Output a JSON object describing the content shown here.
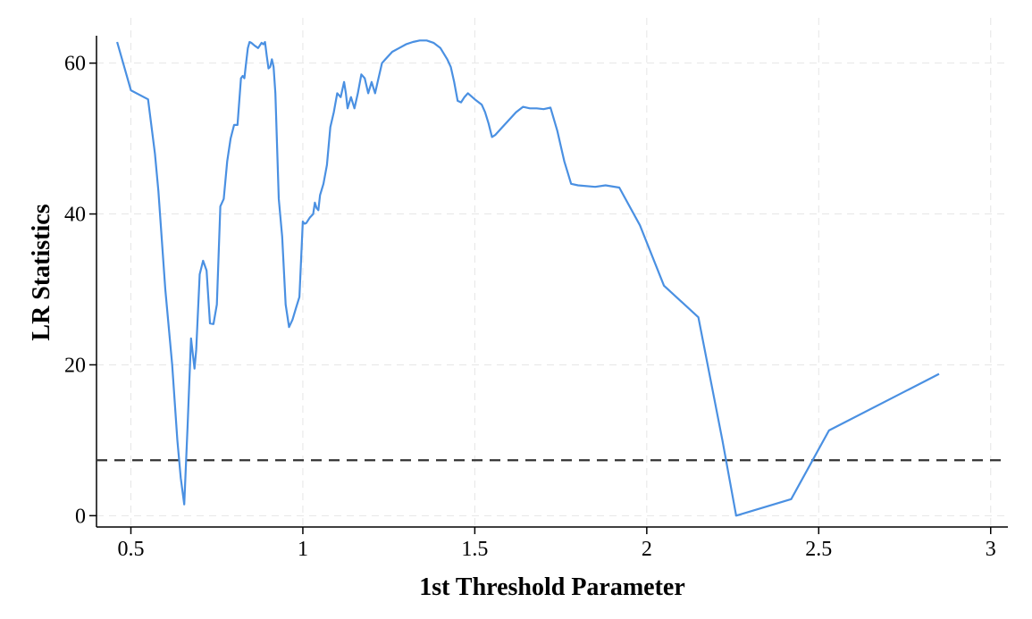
{
  "chart_data": {
    "type": "line",
    "xlabel": "1st Threshold Parameter",
    "ylabel": "LR Statistics",
    "xlim": [
      0.4,
      3.05
    ],
    "ylim": [
      -1.5,
      66
    ],
    "xticks": [
      0.5,
      1,
      1.5,
      2,
      2.5,
      3
    ],
    "xtick_labels": [
      "0.5",
      "1",
      "1.5",
      "2",
      "2.5",
      "3"
    ],
    "yticks": [
      0,
      20,
      40,
      60
    ],
    "ytick_labels": [
      "0",
      "20",
      "40",
      "60"
    ],
    "grid": true,
    "legend": "none",
    "critical_value": 7.35,
    "colors": {
      "series": "#4a90e2",
      "critical_line": "#333333",
      "grid": "#e6e6e6",
      "axis": "#000000"
    },
    "series": [
      {
        "x": [
          0.46,
          0.5,
          0.55,
          0.57,
          0.58,
          0.6,
          0.62,
          0.635,
          0.645,
          0.655,
          0.665,
          0.675,
          0.685,
          0.69,
          0.7,
          0.71,
          0.72,
          0.73,
          0.74,
          0.75,
          0.76,
          0.77,
          0.78,
          0.79,
          0.8,
          0.81,
          0.82,
          0.825,
          0.83,
          0.835,
          0.84,
          0.845,
          0.85,
          0.86,
          0.87,
          0.88,
          0.885,
          0.89,
          0.895,
          0.9,
          0.905,
          0.91,
          0.915,
          0.92,
          0.93,
          0.94,
          0.95,
          0.96,
          0.97,
          0.98,
          0.99,
          1.0,
          1.005,
          1.01,
          1.02,
          1.03,
          1.035,
          1.04,
          1.045,
          1.05,
          1.06,
          1.07,
          1.08,
          1.09,
          1.1,
          1.11,
          1.12,
          1.125,
          1.13,
          1.14,
          1.15,
          1.16,
          1.17,
          1.18,
          1.19,
          1.2,
          1.21,
          1.22,
          1.23,
          1.24,
          1.26,
          1.28,
          1.3,
          1.32,
          1.34,
          1.36,
          1.38,
          1.4,
          1.42,
          1.43,
          1.44,
          1.45,
          1.46,
          1.47,
          1.48,
          1.5,
          1.52,
          1.53,
          1.54,
          1.55,
          1.56,
          1.58,
          1.6,
          1.62,
          1.64,
          1.66,
          1.68,
          1.7,
          1.72,
          1.74,
          1.76,
          1.78,
          1.8,
          1.85,
          1.88,
          1.92,
          1.98,
          2.05,
          2.15,
          2.22,
          2.26,
          2.42,
          2.53,
          2.85
        ],
        "y": [
          62.8,
          56.4,
          55.2,
          48.0,
          43.0,
          30.0,
          20.0,
          10.0,
          5.0,
          1.5,
          12.0,
          23.5,
          19.5,
          22.0,
          32.0,
          33.8,
          32.5,
          25.5,
          25.4,
          28.0,
          41.0,
          42.0,
          47.0,
          50.0,
          51.8,
          51.8,
          58.0,
          58.3,
          58.0,
          60.0,
          62.0,
          62.8,
          62.7,
          62.3,
          62.0,
          62.7,
          62.5,
          62.8,
          61.0,
          59.3,
          59.5,
          60.5,
          59.5,
          56.0,
          42.0,
          37.0,
          28.0,
          25.0,
          26.0,
          27.5,
          29.0,
          39.0,
          38.7,
          38.8,
          39.5,
          40.0,
          41.5,
          40.8,
          40.5,
          42.5,
          44.0,
          46.5,
          51.5,
          53.5,
          56.0,
          55.5,
          57.5,
          56.0,
          54.0,
          55.5,
          54.0,
          56.0,
          58.5,
          58.0,
          56.0,
          57.5,
          56.0,
          58.0,
          60.0,
          60.5,
          61.5,
          62.0,
          62.5,
          62.8,
          63.0,
          63.0,
          62.7,
          62.0,
          60.5,
          59.5,
          57.5,
          55.0,
          54.8,
          55.5,
          56.0,
          55.2,
          54.5,
          53.5,
          52.0,
          50.2,
          50.5,
          51.5,
          52.5,
          53.5,
          54.2,
          54.0,
          54.0,
          53.9,
          54.1,
          51.0,
          47.0,
          44.0,
          43.8,
          43.6,
          43.8,
          43.5,
          38.5,
          30.5,
          26.3,
          10.0,
          0.0,
          2.2,
          11.3,
          18.8
        ]
      }
    ]
  }
}
